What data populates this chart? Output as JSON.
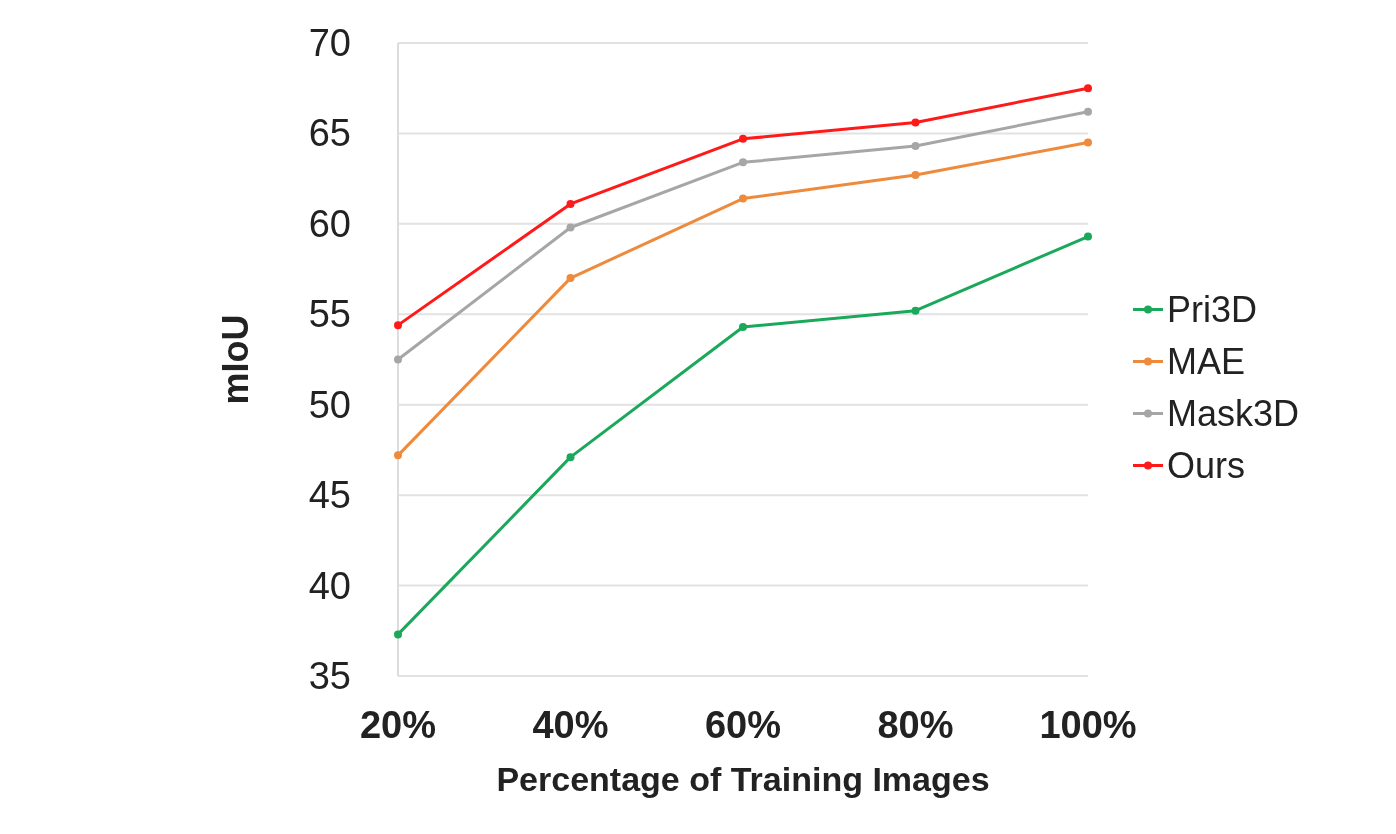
{
  "chart_data": {
    "type": "line",
    "xlabel": "Percentage of Training Images",
    "ylabel": "mIoU",
    "categories": [
      "20%",
      "40%",
      "60%",
      "80%",
      "100%"
    ],
    "series": [
      {
        "name": "Pri3D",
        "color": "#1aa85a",
        "values": [
          37.3,
          47.1,
          54.3,
          55.2,
          59.3
        ]
      },
      {
        "name": "MAE",
        "color": "#ee8a3c",
        "values": [
          47.2,
          57.0,
          61.4,
          62.7,
          64.5
        ]
      },
      {
        "name": "Mask3D",
        "color": "#a6a6a6",
        "values": [
          52.5,
          59.8,
          63.4,
          64.3,
          66.2
        ]
      },
      {
        "name": "Ours",
        "color": "#ff1a1a",
        "values": [
          54.4,
          61.1,
          64.7,
          65.6,
          67.5
        ]
      }
    ],
    "ylim": [
      35,
      70
    ],
    "yticks": [
      35,
      40,
      45,
      50,
      55,
      60,
      65,
      70
    ],
    "grid": "y",
    "legend": "right",
    "marker": "circle",
    "line_style": "solid"
  }
}
